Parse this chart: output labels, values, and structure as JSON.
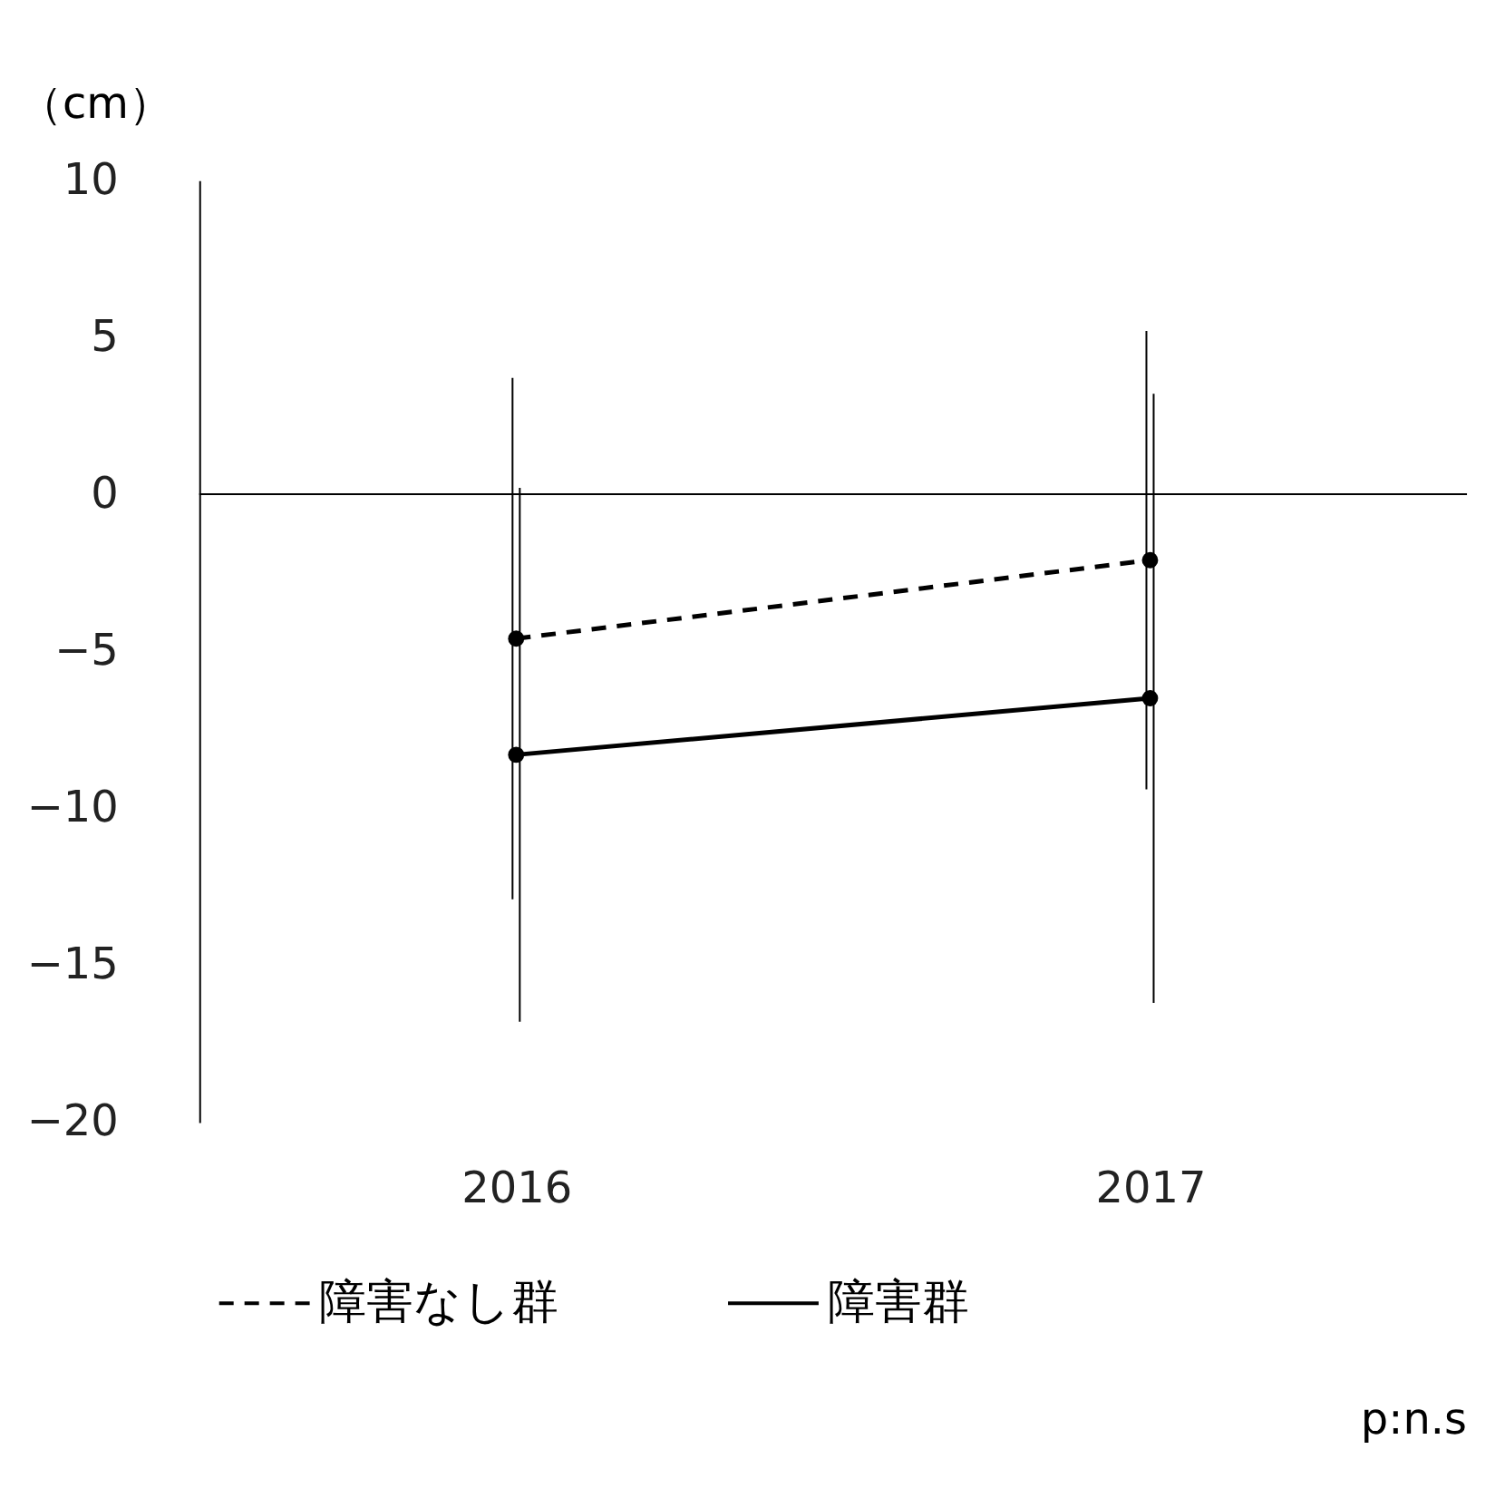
{
  "chart_data": {
    "type": "line",
    "ylabel": "（cm）",
    "categories": [
      "2016",
      "2017"
    ],
    "series": [
      {
        "name": "障害なし群",
        "color": "#000000",
        "line_style": "dashed",
        "values": [
          -4.6,
          -2.1
        ],
        "errors": [
          8.3,
          7.3
        ]
      },
      {
        "name": "障害群",
        "color": "#000000",
        "line_style": "solid",
        "values": [
          -8.3,
          -6.5
        ],
        "errors": [
          8.5,
          9.7
        ]
      }
    ],
    "ylim": [
      -20,
      10
    ],
    "yticks": [
      -20,
      -15,
      -10,
      -5,
      0,
      5,
      10
    ],
    "marker": "circle",
    "grid": false,
    "legend": "bottom",
    "ref_lines": [
      {
        "axis": "y",
        "value": 0
      }
    ],
    "annotations": [
      "p:n.s"
    ]
  }
}
